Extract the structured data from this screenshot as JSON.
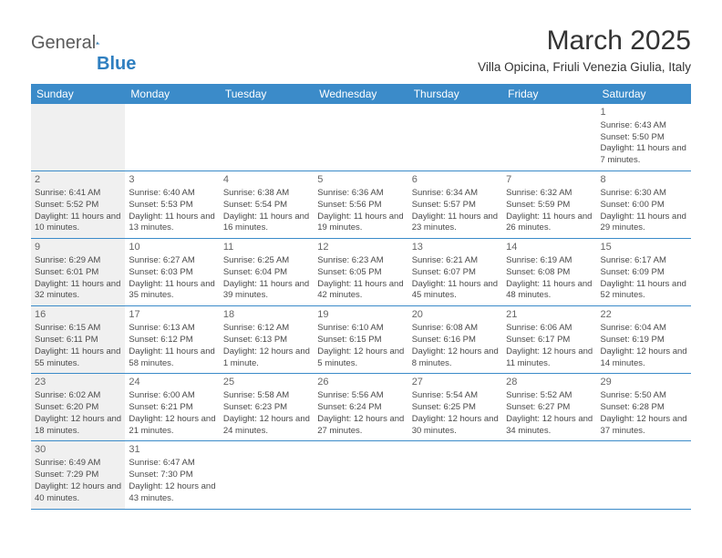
{
  "logo": {
    "part1": "General",
    "part2": "Blue"
  },
  "title": "March 2025",
  "location": "Villa Opicina, Friuli Venezia Giulia, Italy",
  "colors": {
    "header_bg": "#3b8bc9",
    "header_text": "#ffffff",
    "border": "#3b8bc9",
    "shaded_bg": "#f0f0f0",
    "text": "#4a4a4a",
    "title_color": "#333333",
    "logo_gray": "#5a5a5a",
    "logo_blue": "#2f7fc0"
  },
  "dayNames": [
    "Sunday",
    "Monday",
    "Tuesday",
    "Wednesday",
    "Thursday",
    "Friday",
    "Saturday"
  ],
  "weeks": [
    [
      {
        "shaded": true
      },
      {},
      {},
      {},
      {},
      {},
      {
        "day": "1",
        "sunrise": "Sunrise: 6:43 AM",
        "sunset": "Sunset: 5:50 PM",
        "daylight": "Daylight: 11 hours and 7 minutes."
      }
    ],
    [
      {
        "shaded": true,
        "day": "2",
        "sunrise": "Sunrise: 6:41 AM",
        "sunset": "Sunset: 5:52 PM",
        "daylight": "Daylight: 11 hours and 10 minutes."
      },
      {
        "day": "3",
        "sunrise": "Sunrise: 6:40 AM",
        "sunset": "Sunset: 5:53 PM",
        "daylight": "Daylight: 11 hours and 13 minutes."
      },
      {
        "day": "4",
        "sunrise": "Sunrise: 6:38 AM",
        "sunset": "Sunset: 5:54 PM",
        "daylight": "Daylight: 11 hours and 16 minutes."
      },
      {
        "day": "5",
        "sunrise": "Sunrise: 6:36 AM",
        "sunset": "Sunset: 5:56 PM",
        "daylight": "Daylight: 11 hours and 19 minutes."
      },
      {
        "day": "6",
        "sunrise": "Sunrise: 6:34 AM",
        "sunset": "Sunset: 5:57 PM",
        "daylight": "Daylight: 11 hours and 23 minutes."
      },
      {
        "day": "7",
        "sunrise": "Sunrise: 6:32 AM",
        "sunset": "Sunset: 5:59 PM",
        "daylight": "Daylight: 11 hours and 26 minutes."
      },
      {
        "day": "8",
        "sunrise": "Sunrise: 6:30 AM",
        "sunset": "Sunset: 6:00 PM",
        "daylight": "Daylight: 11 hours and 29 minutes."
      }
    ],
    [
      {
        "shaded": true,
        "day": "9",
        "sunrise": "Sunrise: 6:29 AM",
        "sunset": "Sunset: 6:01 PM",
        "daylight": "Daylight: 11 hours and 32 minutes."
      },
      {
        "day": "10",
        "sunrise": "Sunrise: 6:27 AM",
        "sunset": "Sunset: 6:03 PM",
        "daylight": "Daylight: 11 hours and 35 minutes."
      },
      {
        "day": "11",
        "sunrise": "Sunrise: 6:25 AM",
        "sunset": "Sunset: 6:04 PM",
        "daylight": "Daylight: 11 hours and 39 minutes."
      },
      {
        "day": "12",
        "sunrise": "Sunrise: 6:23 AM",
        "sunset": "Sunset: 6:05 PM",
        "daylight": "Daylight: 11 hours and 42 minutes."
      },
      {
        "day": "13",
        "sunrise": "Sunrise: 6:21 AM",
        "sunset": "Sunset: 6:07 PM",
        "daylight": "Daylight: 11 hours and 45 minutes."
      },
      {
        "day": "14",
        "sunrise": "Sunrise: 6:19 AM",
        "sunset": "Sunset: 6:08 PM",
        "daylight": "Daylight: 11 hours and 48 minutes."
      },
      {
        "day": "15",
        "sunrise": "Sunrise: 6:17 AM",
        "sunset": "Sunset: 6:09 PM",
        "daylight": "Daylight: 11 hours and 52 minutes."
      }
    ],
    [
      {
        "shaded": true,
        "day": "16",
        "sunrise": "Sunrise: 6:15 AM",
        "sunset": "Sunset: 6:11 PM",
        "daylight": "Daylight: 11 hours and 55 minutes."
      },
      {
        "day": "17",
        "sunrise": "Sunrise: 6:13 AM",
        "sunset": "Sunset: 6:12 PM",
        "daylight": "Daylight: 11 hours and 58 minutes."
      },
      {
        "day": "18",
        "sunrise": "Sunrise: 6:12 AM",
        "sunset": "Sunset: 6:13 PM",
        "daylight": "Daylight: 12 hours and 1 minute."
      },
      {
        "day": "19",
        "sunrise": "Sunrise: 6:10 AM",
        "sunset": "Sunset: 6:15 PM",
        "daylight": "Daylight: 12 hours and 5 minutes."
      },
      {
        "day": "20",
        "sunrise": "Sunrise: 6:08 AM",
        "sunset": "Sunset: 6:16 PM",
        "daylight": "Daylight: 12 hours and 8 minutes."
      },
      {
        "day": "21",
        "sunrise": "Sunrise: 6:06 AM",
        "sunset": "Sunset: 6:17 PM",
        "daylight": "Daylight: 12 hours and 11 minutes."
      },
      {
        "day": "22",
        "sunrise": "Sunrise: 6:04 AM",
        "sunset": "Sunset: 6:19 PM",
        "daylight": "Daylight: 12 hours and 14 minutes."
      }
    ],
    [
      {
        "shaded": true,
        "day": "23",
        "sunrise": "Sunrise: 6:02 AM",
        "sunset": "Sunset: 6:20 PM",
        "daylight": "Daylight: 12 hours and 18 minutes."
      },
      {
        "day": "24",
        "sunrise": "Sunrise: 6:00 AM",
        "sunset": "Sunset: 6:21 PM",
        "daylight": "Daylight: 12 hours and 21 minutes."
      },
      {
        "day": "25",
        "sunrise": "Sunrise: 5:58 AM",
        "sunset": "Sunset: 6:23 PM",
        "daylight": "Daylight: 12 hours and 24 minutes."
      },
      {
        "day": "26",
        "sunrise": "Sunrise: 5:56 AM",
        "sunset": "Sunset: 6:24 PM",
        "daylight": "Daylight: 12 hours and 27 minutes."
      },
      {
        "day": "27",
        "sunrise": "Sunrise: 5:54 AM",
        "sunset": "Sunset: 6:25 PM",
        "daylight": "Daylight: 12 hours and 30 minutes."
      },
      {
        "day": "28",
        "sunrise": "Sunrise: 5:52 AM",
        "sunset": "Sunset: 6:27 PM",
        "daylight": "Daylight: 12 hours and 34 minutes."
      },
      {
        "day": "29",
        "sunrise": "Sunrise: 5:50 AM",
        "sunset": "Sunset: 6:28 PM",
        "daylight": "Daylight: 12 hours and 37 minutes."
      }
    ],
    [
      {
        "shaded": true,
        "day": "30",
        "sunrise": "Sunrise: 6:49 AM",
        "sunset": "Sunset: 7:29 PM",
        "daylight": "Daylight: 12 hours and 40 minutes."
      },
      {
        "day": "31",
        "sunrise": "Sunrise: 6:47 AM",
        "sunset": "Sunset: 7:30 PM",
        "daylight": "Daylight: 12 hours and 43 minutes."
      },
      {},
      {},
      {},
      {},
      {}
    ]
  ]
}
